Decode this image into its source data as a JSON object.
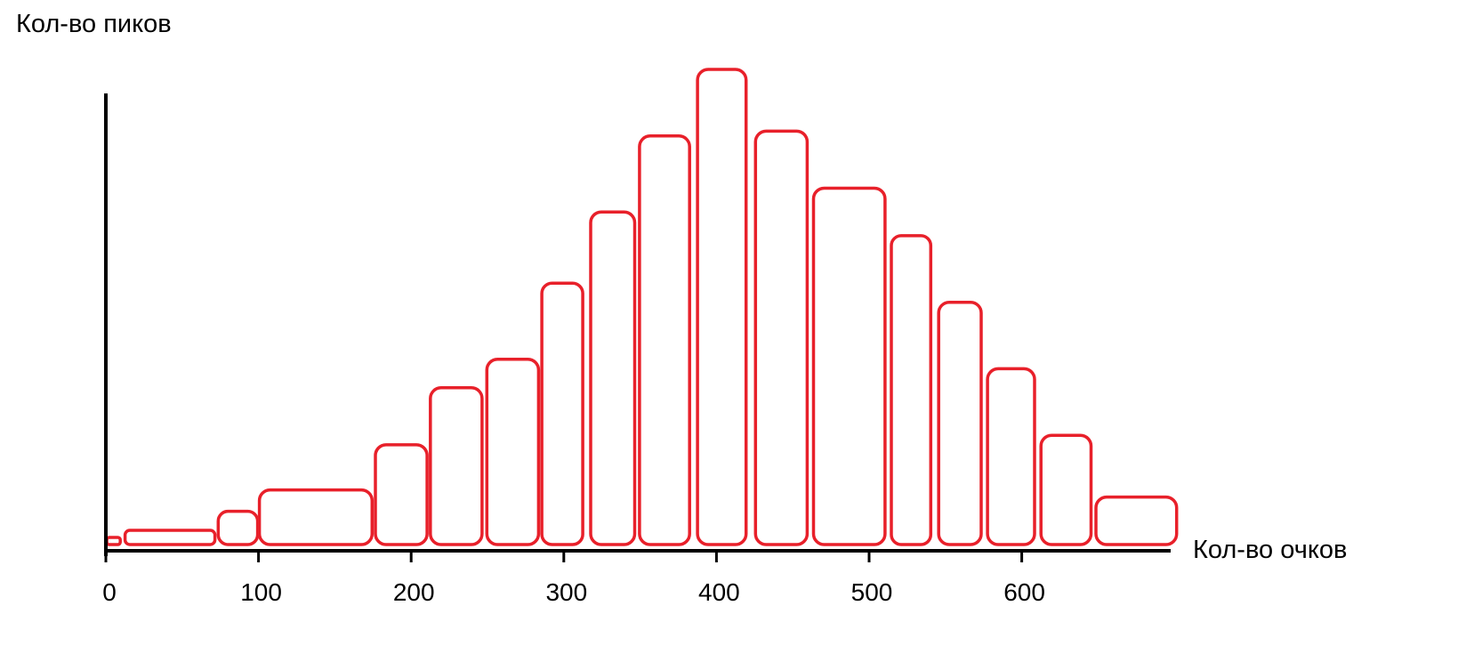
{
  "chart_data": {
    "type": "bar",
    "title": "",
    "ylabel": "Кол-во пиков",
    "xlabel": "Кол-во очков",
    "xlim": [
      0,
      700
    ],
    "ylim": [
      0,
      100
    ],
    "x_ticks": [
      "0",
      "100",
      "200",
      "300",
      "400",
      "500",
      "600"
    ],
    "bar_color": "#e8202a",
    "axis_color": "#000000",
    "grid": false,
    "legend": "none",
    "bars": [
      {
        "x0": 0,
        "x1": 10,
        "value": 1.5
      },
      {
        "x0": 12,
        "x1": 72,
        "value": 3
      },
      {
        "x0": 73,
        "x1": 100,
        "value": 7
      },
      {
        "x0": 100,
        "x1": 175,
        "value": 11.5
      },
      {
        "x0": 176,
        "x1": 211,
        "value": 21
      },
      {
        "x0": 212,
        "x1": 247,
        "value": 33
      },
      {
        "x0": 249,
        "x1": 284,
        "value": 39
      },
      {
        "x0": 285,
        "x1": 313,
        "value": 55
      },
      {
        "x0": 317,
        "x1": 347,
        "value": 70
      },
      {
        "x0": 349,
        "x1": 383,
        "value": 86
      },
      {
        "x0": 387,
        "x1": 420,
        "value": 100
      },
      {
        "x0": 425,
        "x1": 460,
        "value": 87
      },
      {
        "x0": 463,
        "x1": 511,
        "value": 75
      },
      {
        "x0": 514,
        "x1": 541,
        "value": 65
      },
      {
        "x0": 545,
        "x1": 574,
        "value": 51
      },
      {
        "x0": 577,
        "x1": 609,
        "value": 37
      },
      {
        "x0": 612,
        "x1": 646,
        "value": 23
      },
      {
        "x0": 648,
        "x1": 702,
        "value": 10
      }
    ]
  }
}
